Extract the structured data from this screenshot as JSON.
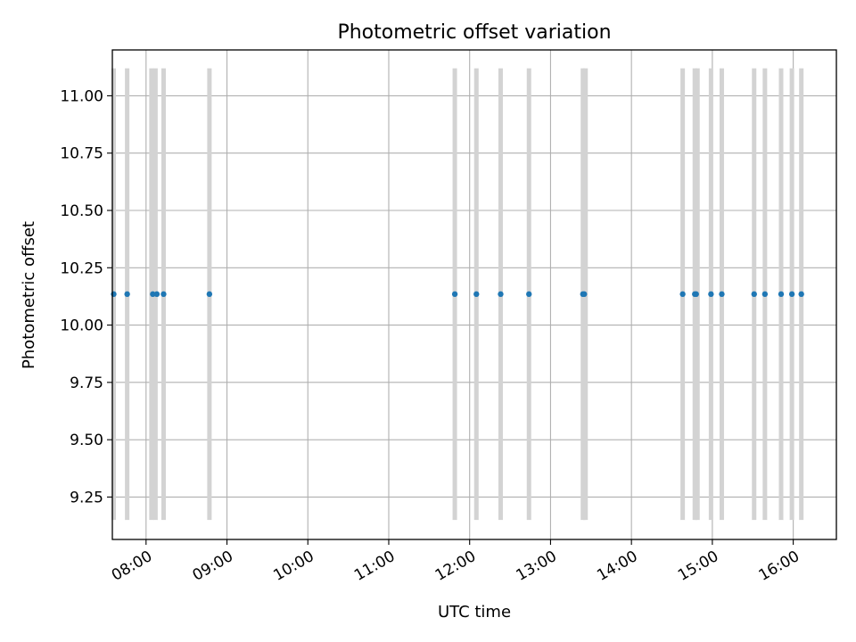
{
  "chart_data": {
    "type": "scatter",
    "title": "Photometric offset variation",
    "xlabel": "UTC time",
    "ylabel": "Photometric offset",
    "x_axis_kind": "time",
    "xlim": [
      "07:35",
      "16:32"
    ],
    "ylim": [
      9.065,
      11.2
    ],
    "grid": true,
    "x_ticks": [
      "08:00",
      "09:00",
      "10:00",
      "11:00",
      "12:00",
      "13:00",
      "14:00",
      "15:00",
      "16:00"
    ],
    "y_ticks": [
      "9.25",
      "9.50",
      "9.75",
      "10.00",
      "10.25",
      "10.50",
      "10.75",
      "11.00"
    ],
    "band_range": [
      9.15,
      11.12
    ],
    "series": [
      {
        "color": "#1f77b4",
        "points": [
          {
            "x": "07:36",
            "y": 10.135
          },
          {
            "x": "07:46",
            "y": 10.135
          },
          {
            "x": "08:05",
            "y": 10.135
          },
          {
            "x": "08:08",
            "y": 10.135
          },
          {
            "x": "08:13",
            "y": 10.135
          },
          {
            "x": "08:47",
            "y": 10.135
          },
          {
            "x": "11:49",
            "y": 10.135
          },
          {
            "x": "12:05",
            "y": 10.135
          },
          {
            "x": "12:23",
            "y": 10.135
          },
          {
            "x": "12:44",
            "y": 10.135
          },
          {
            "x": "13:24",
            "y": 10.135
          },
          {
            "x": "13:25",
            "y": 10.135
          },
          {
            "x": "14:38",
            "y": 10.135
          },
          {
            "x": "14:47",
            "y": 10.135
          },
          {
            "x": "14:48",
            "y": 10.135
          },
          {
            "x": "14:59",
            "y": 10.135
          },
          {
            "x": "15:07",
            "y": 10.135
          },
          {
            "x": "15:31",
            "y": 10.135
          },
          {
            "x": "15:39",
            "y": 10.135
          },
          {
            "x": "15:51",
            "y": 10.135
          },
          {
            "x": "15:59",
            "y": 10.135
          },
          {
            "x": "16:06",
            "y": 10.135
          }
        ]
      }
    ],
    "bands": {
      "color": "#d3d3d3",
      "x": [
        "07:36",
        "07:46",
        "08:04",
        "08:07",
        "08:13",
        "08:47",
        "11:49",
        "12:05",
        "12:23",
        "12:44",
        "13:24",
        "13:26",
        "14:38",
        "14:47",
        "14:49",
        "14:59",
        "15:07",
        "15:31",
        "15:39",
        "15:51",
        "15:59",
        "16:06"
      ]
    }
  }
}
